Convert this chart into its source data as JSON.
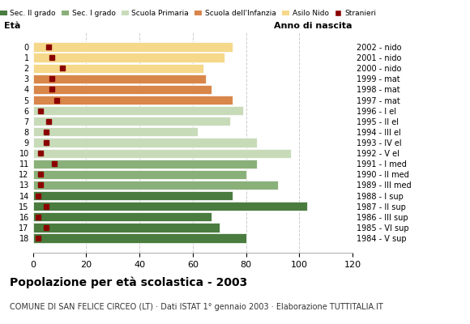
{
  "ages": [
    18,
    17,
    16,
    15,
    14,
    13,
    12,
    11,
    10,
    9,
    8,
    7,
    6,
    5,
    4,
    3,
    2,
    1,
    0
  ],
  "years": [
    "1984 - V sup",
    "1985 - VI sup",
    "1986 - III sup",
    "1987 - II sup",
    "1988 - I sup",
    "1989 - III med",
    "1990 - II med",
    "1991 - I med",
    "1992 - V el",
    "1993 - IV el",
    "1994 - III el",
    "1995 - II el",
    "1996 - I el",
    "1997 - mat",
    "1998 - mat",
    "1999 - mat",
    "2000 - nido",
    "2001 - nido",
    "2002 - nido"
  ],
  "bar_values": [
    80,
    70,
    67,
    103,
    75,
    92,
    80,
    84,
    97,
    84,
    62,
    74,
    79,
    75,
    67,
    65,
    64,
    72,
    75
  ],
  "stranieri": [
    2,
    5,
    2,
    5,
    2,
    3,
    3,
    8,
    3,
    5,
    5,
    6,
    3,
    9,
    7,
    7,
    11,
    7,
    6
  ],
  "colors": {
    "Sec. II grado": "#4a7c3f",
    "Sec. I grado": "#8ab07a",
    "Scuola Primaria": "#c8dbb9",
    "Scuola dell'Infanzia": "#d9864a",
    "Asilo Nido": "#f5d88a",
    "Stranieri": "#8b0000"
  },
  "age_category": {
    "18": "Sec. II grado",
    "17": "Sec. II grado",
    "16": "Sec. II grado",
    "15": "Sec. II grado",
    "14": "Sec. II grado",
    "13": "Sec. I grado",
    "12": "Sec. I grado",
    "11": "Sec. I grado",
    "10": "Scuola Primaria",
    "9": "Scuola Primaria",
    "8": "Scuola Primaria",
    "7": "Scuola Primaria",
    "6": "Scuola Primaria",
    "5": "Scuola dell'Infanzia",
    "4": "Scuola dell'Infanzia",
    "3": "Scuola dell'Infanzia",
    "2": "Asilo Nido",
    "1": "Asilo Nido",
    "0": "Asilo Nido"
  },
  "title": "Popolazione per età scolastica - 2003",
  "subtitle": "COMUNE DI SAN FELICE CIRCEO (LT) · Dati ISTAT 1° gennaio 2003 · Elaborazione TUTTITALIA.IT",
  "xlabel_eta": "Età",
  "xlabel_anno": "Anno di nascita",
  "xlim": [
    0,
    120
  ],
  "xticks": [
    0,
    20,
    40,
    60,
    80,
    100,
    120
  ],
  "bg_color": "#ffffff",
  "grid_color": "#cccccc"
}
